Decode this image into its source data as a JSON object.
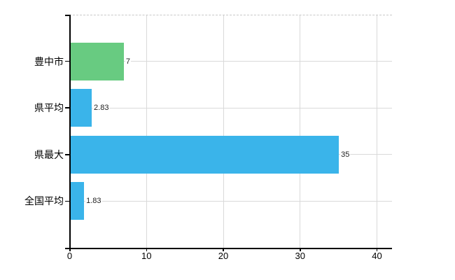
{
  "chart_data": {
    "type": "bar",
    "orientation": "horizontal",
    "title": "",
    "xlabel": "",
    "ylabel": "",
    "categories": [
      "豊中市",
      "県平均",
      "県最大",
      "全国平均"
    ],
    "values": [
      7,
      2.83,
      35,
      1.83
    ],
    "value_labels": [
      "7",
      "2.83",
      "35",
      "1.83"
    ],
    "bar_colors": [
      "#68cb81",
      "#3ab4ea",
      "#3ab4ea",
      "#3ab4ea"
    ],
    "xlim": [
      0,
      42
    ],
    "xticks": [
      0,
      10,
      20,
      30,
      40
    ],
    "xtick_labels": [
      "0",
      "10",
      "20",
      "30",
      "40"
    ],
    "grid": "both",
    "legend_position": "none"
  },
  "colors": {
    "background": "#ffffff",
    "axis": "#000000",
    "gridline": "#d9d9d9",
    "top_border": "#c8c8c8",
    "value_label": "#222222",
    "tick_label": "#000000",
    "bar_green": "#68cb81",
    "bar_blue": "#3ab4ea"
  }
}
